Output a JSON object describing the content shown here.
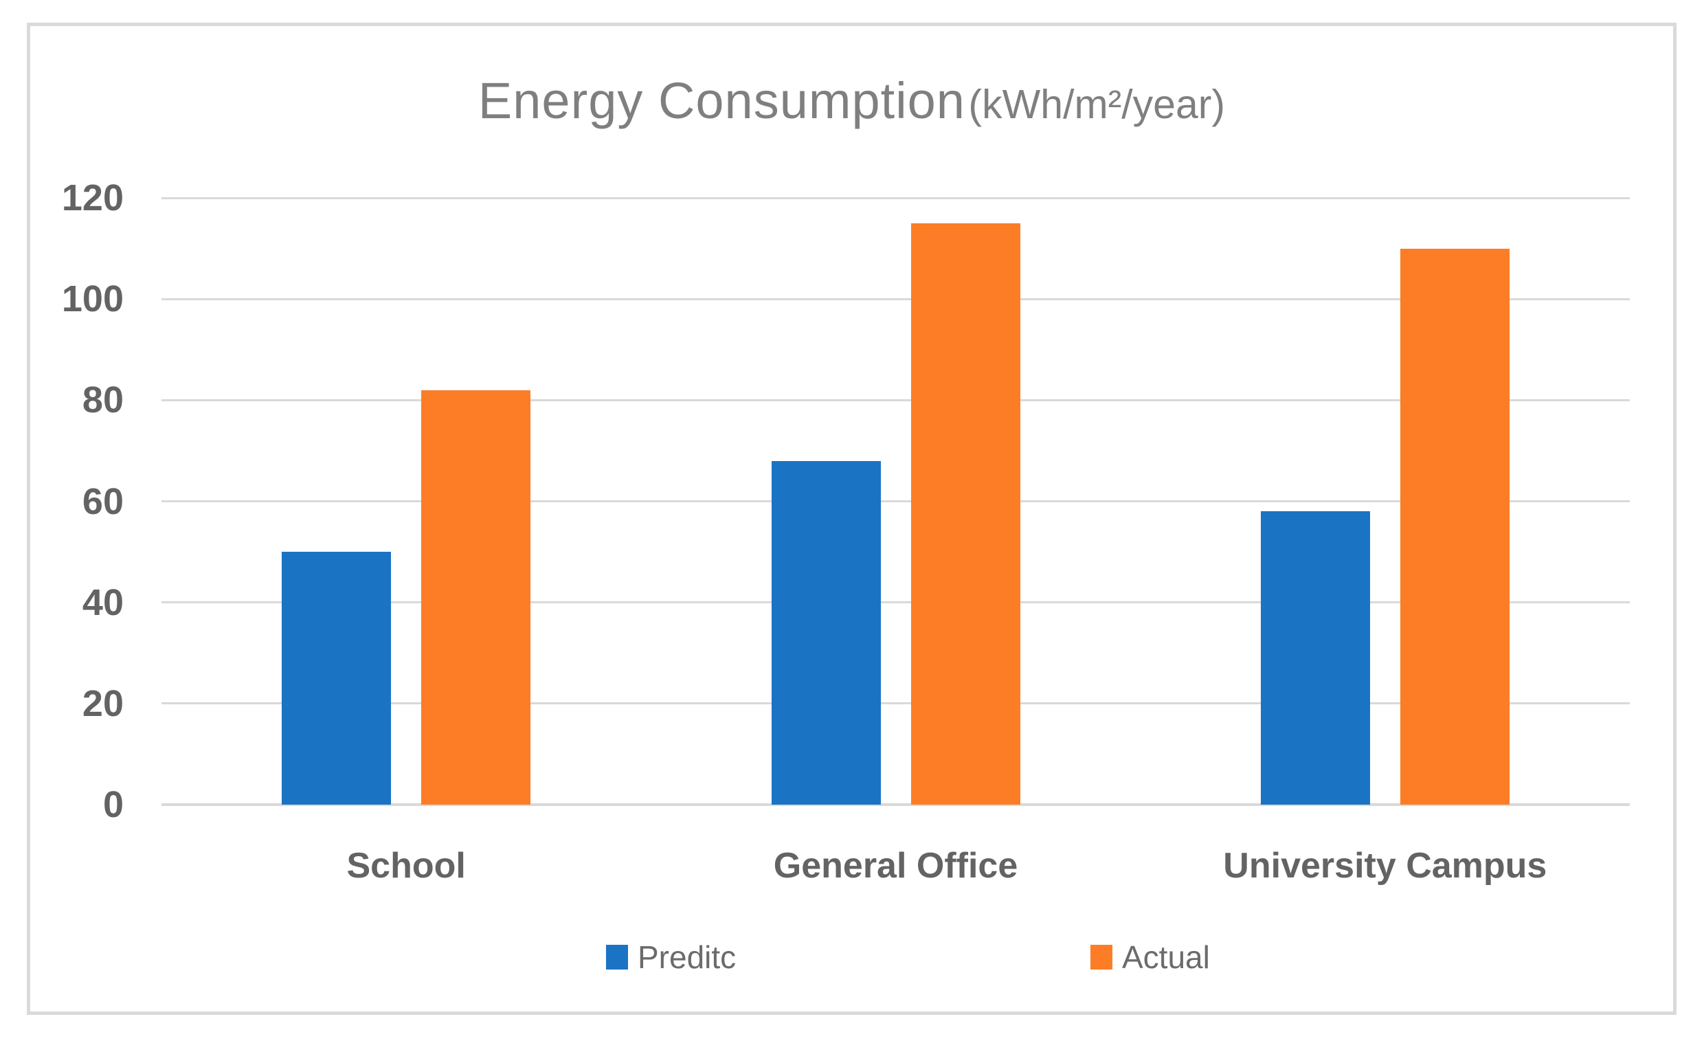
{
  "chart_data": {
    "type": "bar",
    "title": "Energy Consumption",
    "title_units": "(kWh/m²/year)",
    "categories": [
      "School",
      "General Office",
      "University Campus"
    ],
    "series": [
      {
        "name": "Preditc",
        "color": "#1b73c4",
        "values": [
          50,
          68,
          58
        ]
      },
      {
        "name": "Actual",
        "color": "#fc7d26",
        "values": [
          82,
          115,
          110
        ]
      }
    ],
    "ylim": [
      0,
      120
    ],
    "yticks": [
      0,
      20,
      40,
      60,
      80,
      100,
      120
    ],
    "grid": true,
    "legend_position": "bottom",
    "colors": {
      "gridline": "#d9d9d9",
      "frame_border": "#dadada",
      "title_text": "#7f7f7f",
      "axis_text": "#636363",
      "legend_text": "#6b6b6b"
    }
  }
}
